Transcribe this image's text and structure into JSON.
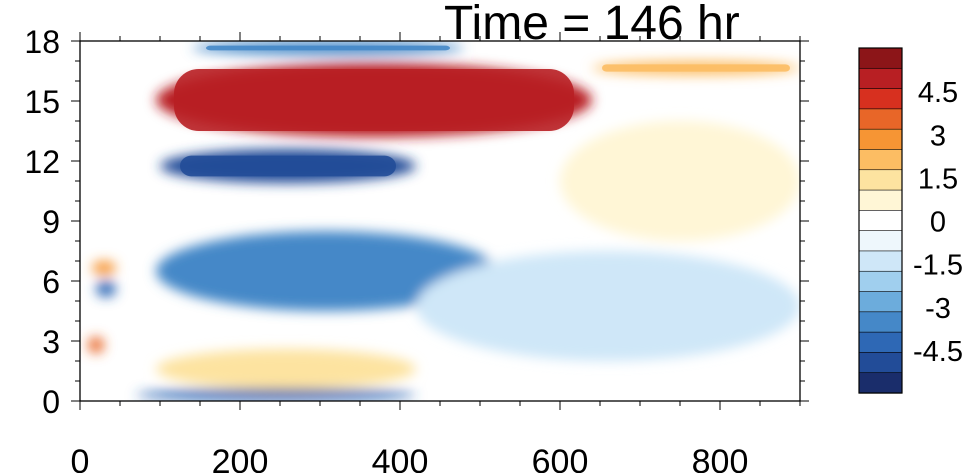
{
  "chart_data": {
    "type": "heatmap",
    "title": "Time = 146 hr",
    "xlabel": "",
    "ylabel": "",
    "xlim": [
      0,
      900
    ],
    "ylim": [
      0,
      18
    ],
    "x_ticks": [
      0,
      200,
      400,
      600,
      800
    ],
    "y_ticks": [
      0,
      3,
      6,
      9,
      12,
      15,
      18
    ],
    "colorbar": {
      "levels": [
        -5.25,
        -4.5,
        -3.75,
        -3,
        -2.25,
        -1.5,
        -0.75,
        0,
        0.75,
        1.5,
        2.25,
        3,
        3.75,
        4.5,
        5.25
      ],
      "labels": [
        "4.5",
        "3",
        "1.5",
        "0",
        "-1.5",
        "-3",
        "-4.5"
      ],
      "label_values": [
        4.5,
        3,
        1.5,
        0,
        -1.5,
        -3,
        -4.5
      ],
      "colors": [
        "#1a2d6b",
        "#224c98",
        "#2e68b5",
        "#4588c8",
        "#6cacdc",
        "#a0cfee",
        "#cfe7f8",
        "#eef7fc",
        "#ffffff",
        "#fff6d6",
        "#fde3a0",
        "#fcbd63",
        "#f69534",
        "#e86628",
        "#d7301f",
        "#b81f23",
        "#8c1518"
      ]
    },
    "features": [
      {
        "x": [
          95,
          640
        ],
        "y": [
          13.2,
          16.9
        ],
        "value": 5.5
      },
      {
        "x": [
          640,
          900
        ],
        "y": [
          16.3,
          17.0
        ],
        "value": 3
      },
      {
        "x": [
          100,
          420
        ],
        "y": [
          10.9,
          12.6
        ],
        "value": -5
      },
      {
        "x": [
          95,
          520
        ],
        "y": [
          4.5,
          8.5
        ],
        "value": -3.2
      },
      {
        "x": [
          140,
          480
        ],
        "y": [
          17.3,
          18.0
        ],
        "value": -3.5
      },
      {
        "x": [
          95,
          420
        ],
        "y": [
          0.6,
          2.6
        ],
        "value": 1.8
      },
      {
        "x": [
          70,
          420
        ],
        "y": [
          0.0,
          0.6
        ],
        "value": -4
      },
      {
        "x": [
          10,
          30
        ],
        "y": [
          2.4,
          3.2
        ],
        "value": 4.5
      },
      {
        "x": [
          20,
          45
        ],
        "y": [
          5.2,
          6.0
        ],
        "value": -4
      },
      {
        "x": [
          15,
          45
        ],
        "y": [
          6.3,
          7.0
        ],
        "value": 3.5
      },
      {
        "x": [
          600,
          900
        ],
        "y": [
          8.0,
          14.0
        ],
        "value": 1.2
      },
      {
        "x": [
          420,
          900
        ],
        "y": [
          2.0,
          7.5
        ],
        "value": -1
      }
    ]
  }
}
